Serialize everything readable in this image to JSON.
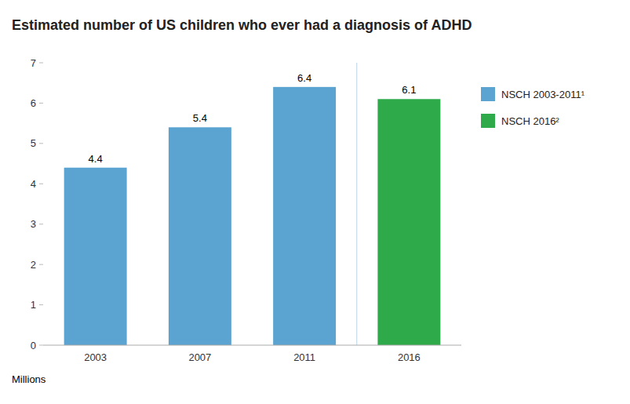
{
  "chart_data": {
    "type": "bar",
    "title": "Estimated number of US children who ever had a diagnosis of ADHD",
    "xlabel": "Millions",
    "categories": [
      "2003",
      "2007",
      "2011",
      "2016"
    ],
    "series": [
      {
        "name": "NSCH 2003-2011¹",
        "color": "#5BA3D0",
        "values": [
          4.4,
          5.4,
          6.4,
          null
        ]
      },
      {
        "name": "NSCH 2016²",
        "color": "#2EAA4A",
        "values": [
          null,
          null,
          null,
          6.1
        ]
      }
    ],
    "ylim": [
      0,
      7
    ],
    "yticks": [
      0,
      1,
      2,
      3,
      4,
      5,
      6,
      7
    ],
    "grid": false,
    "legend": "upper right",
    "data_labels": true
  }
}
